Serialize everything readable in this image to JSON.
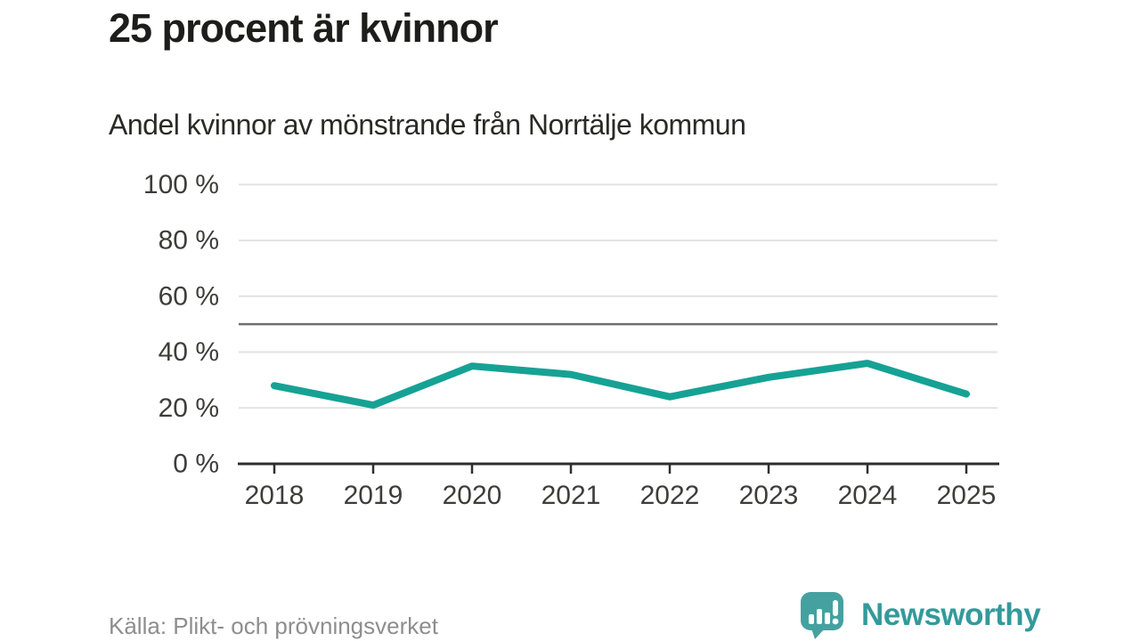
{
  "header": {
    "title": "25 procent är kvinnor"
  },
  "chart_data": {
    "type": "line",
    "title": "Andel kvinnor av mönstrande från Norrtälje kommun",
    "categories": [
      "2018",
      "2019",
      "2020",
      "2021",
      "2022",
      "2023",
      "2024",
      "2025"
    ],
    "series": [
      {
        "name": "Andel kvinnor av mönstrande",
        "values": [
          28,
          21,
          35,
          32,
          24,
          31,
          36,
          25
        ]
      }
    ],
    "unit": "%",
    "xlabel": "",
    "ylabel": "",
    "ylim": [
      0,
      100
    ],
    "grid": true,
    "legend_position": "none",
    "y_ticks": [
      {
        "value": 0,
        "label": "0 %"
      },
      {
        "value": 20,
        "label": "20 %"
      },
      {
        "value": 40,
        "label": "40 %"
      },
      {
        "value": 60,
        "label": "60 %"
      },
      {
        "value": 80,
        "label": "80 %"
      },
      {
        "value": 100,
        "label": "100 %"
      }
    ],
    "reference_line": {
      "value": 50
    },
    "colors": {
      "line": "#15a294",
      "grid": "#e2e2e2",
      "reference": "#6f6f6f",
      "axis": "#2e2e2e",
      "tick_label": "#3d3d3b"
    }
  },
  "footer": {
    "source": "Källa: Plikt- och prövningsverket",
    "logo": {
      "name": "Newsworthy",
      "wordmark": "Newsworthy",
      "bubble_color": "#45a1a0",
      "text_color": "#339a9b"
    }
  }
}
